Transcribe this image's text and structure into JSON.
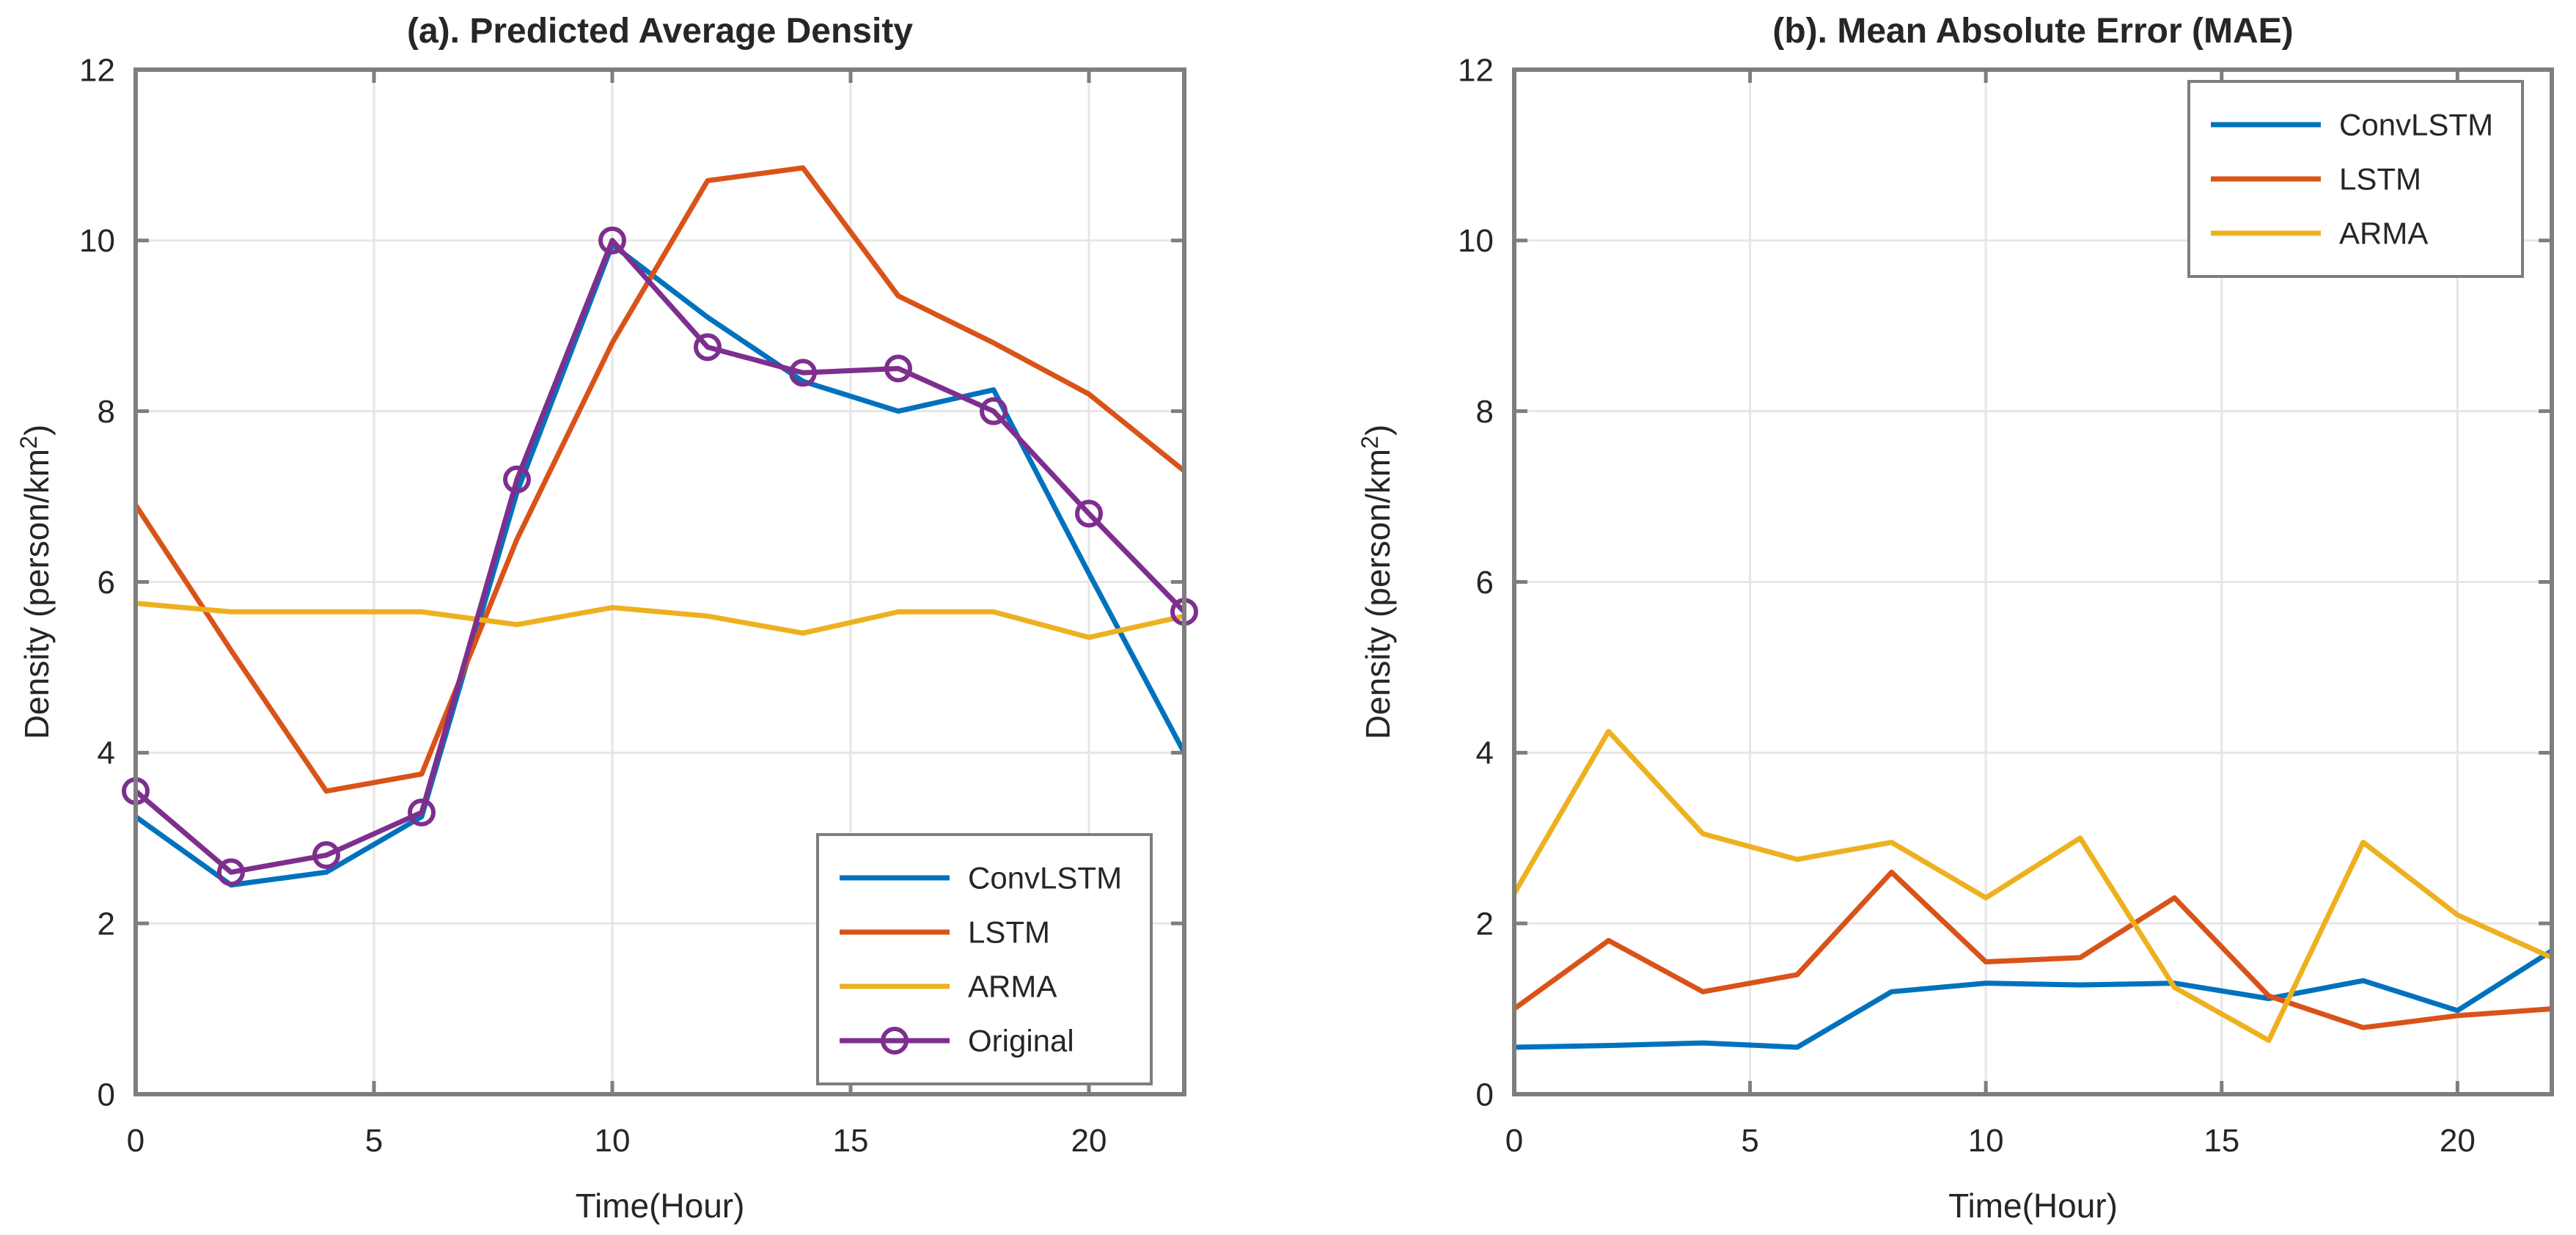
{
  "figure": {
    "background": "#ffffff",
    "axis_color": "#7e7e7e",
    "grid_color": "#e6e6e6",
    "text_color": "#262626"
  },
  "chart_data": [
    {
      "type": "line",
      "title": "(a). Predicted Average Density",
      "xlabel": "Time(Hour)",
      "ylabel_parts": [
        "Density (person/km",
        "2",
        ")"
      ],
      "xlim": [
        0,
        22
      ],
      "ylim": [
        0,
        12
      ],
      "xticks": [
        0,
        5,
        10,
        15,
        20
      ],
      "yticks": [
        0,
        2,
        4,
        6,
        8,
        10,
        12
      ],
      "grid": "on",
      "legend_position": "southeast",
      "x": [
        0,
        2,
        4,
        6,
        8,
        10,
        12,
        14,
        16,
        18,
        20,
        22
      ],
      "series": [
        {
          "name": "ConvLSTM",
          "color": "#0072BD",
          "marker": "none",
          "values": [
            3.25,
            2.45,
            2.6,
            3.25,
            7.05,
            9.95,
            9.1,
            8.35,
            8.0,
            8.25,
            6.1,
            4.0
          ]
        },
        {
          "name": "LSTM",
          "color": "#D95319",
          "marker": "none",
          "values": [
            6.9,
            5.2,
            3.55,
            3.75,
            6.5,
            8.8,
            10.7,
            10.85,
            9.35,
            8.8,
            8.2,
            7.3
          ]
        },
        {
          "name": "ARMA",
          "color": "#EDB120",
          "marker": "none",
          "values": [
            5.75,
            5.65,
            5.65,
            5.65,
            5.5,
            5.7,
            5.6,
            5.4,
            5.65,
            5.65,
            5.35,
            5.6
          ]
        },
        {
          "name": "Original",
          "color": "#7E2F8E",
          "marker": "circle",
          "values": [
            3.55,
            2.6,
            2.8,
            3.3,
            7.2,
            10.0,
            8.75,
            8.45,
            8.5,
            8.0,
            6.8,
            5.65
          ]
        }
      ]
    },
    {
      "type": "line",
      "title": "(b). Mean Absolute Error (MAE)",
      "xlabel": "Time(Hour)",
      "ylabel_parts": [
        "Density (person/km",
        "2",
        ")"
      ],
      "xlim": [
        0,
        22
      ],
      "ylim": [
        0,
        12
      ],
      "xticks": [
        0,
        5,
        10,
        15,
        20
      ],
      "yticks": [
        0,
        2,
        4,
        6,
        8,
        10,
        12
      ],
      "grid": "on",
      "legend_position": "northeast",
      "x": [
        0,
        2,
        4,
        6,
        8,
        10,
        12,
        14,
        16,
        18,
        20,
        22
      ],
      "series": [
        {
          "name": "ConvLSTM",
          "color": "#0072BD",
          "marker": "none",
          "values": [
            0.55,
            0.57,
            0.6,
            0.55,
            1.2,
            1.3,
            1.28,
            1.3,
            1.12,
            1.33,
            0.98,
            1.68
          ]
        },
        {
          "name": "LSTM",
          "color": "#D95319",
          "marker": "none",
          "values": [
            1.0,
            1.8,
            1.2,
            1.4,
            2.6,
            1.55,
            1.6,
            2.3,
            1.15,
            0.78,
            0.92,
            1.0
          ]
        },
        {
          "name": "ARMA",
          "color": "#EDB120",
          "marker": "none",
          "values": [
            2.35,
            4.25,
            3.05,
            2.75,
            2.95,
            2.3,
            3.0,
            1.25,
            0.63,
            2.95,
            2.1,
            1.6
          ]
        }
      ]
    }
  ]
}
